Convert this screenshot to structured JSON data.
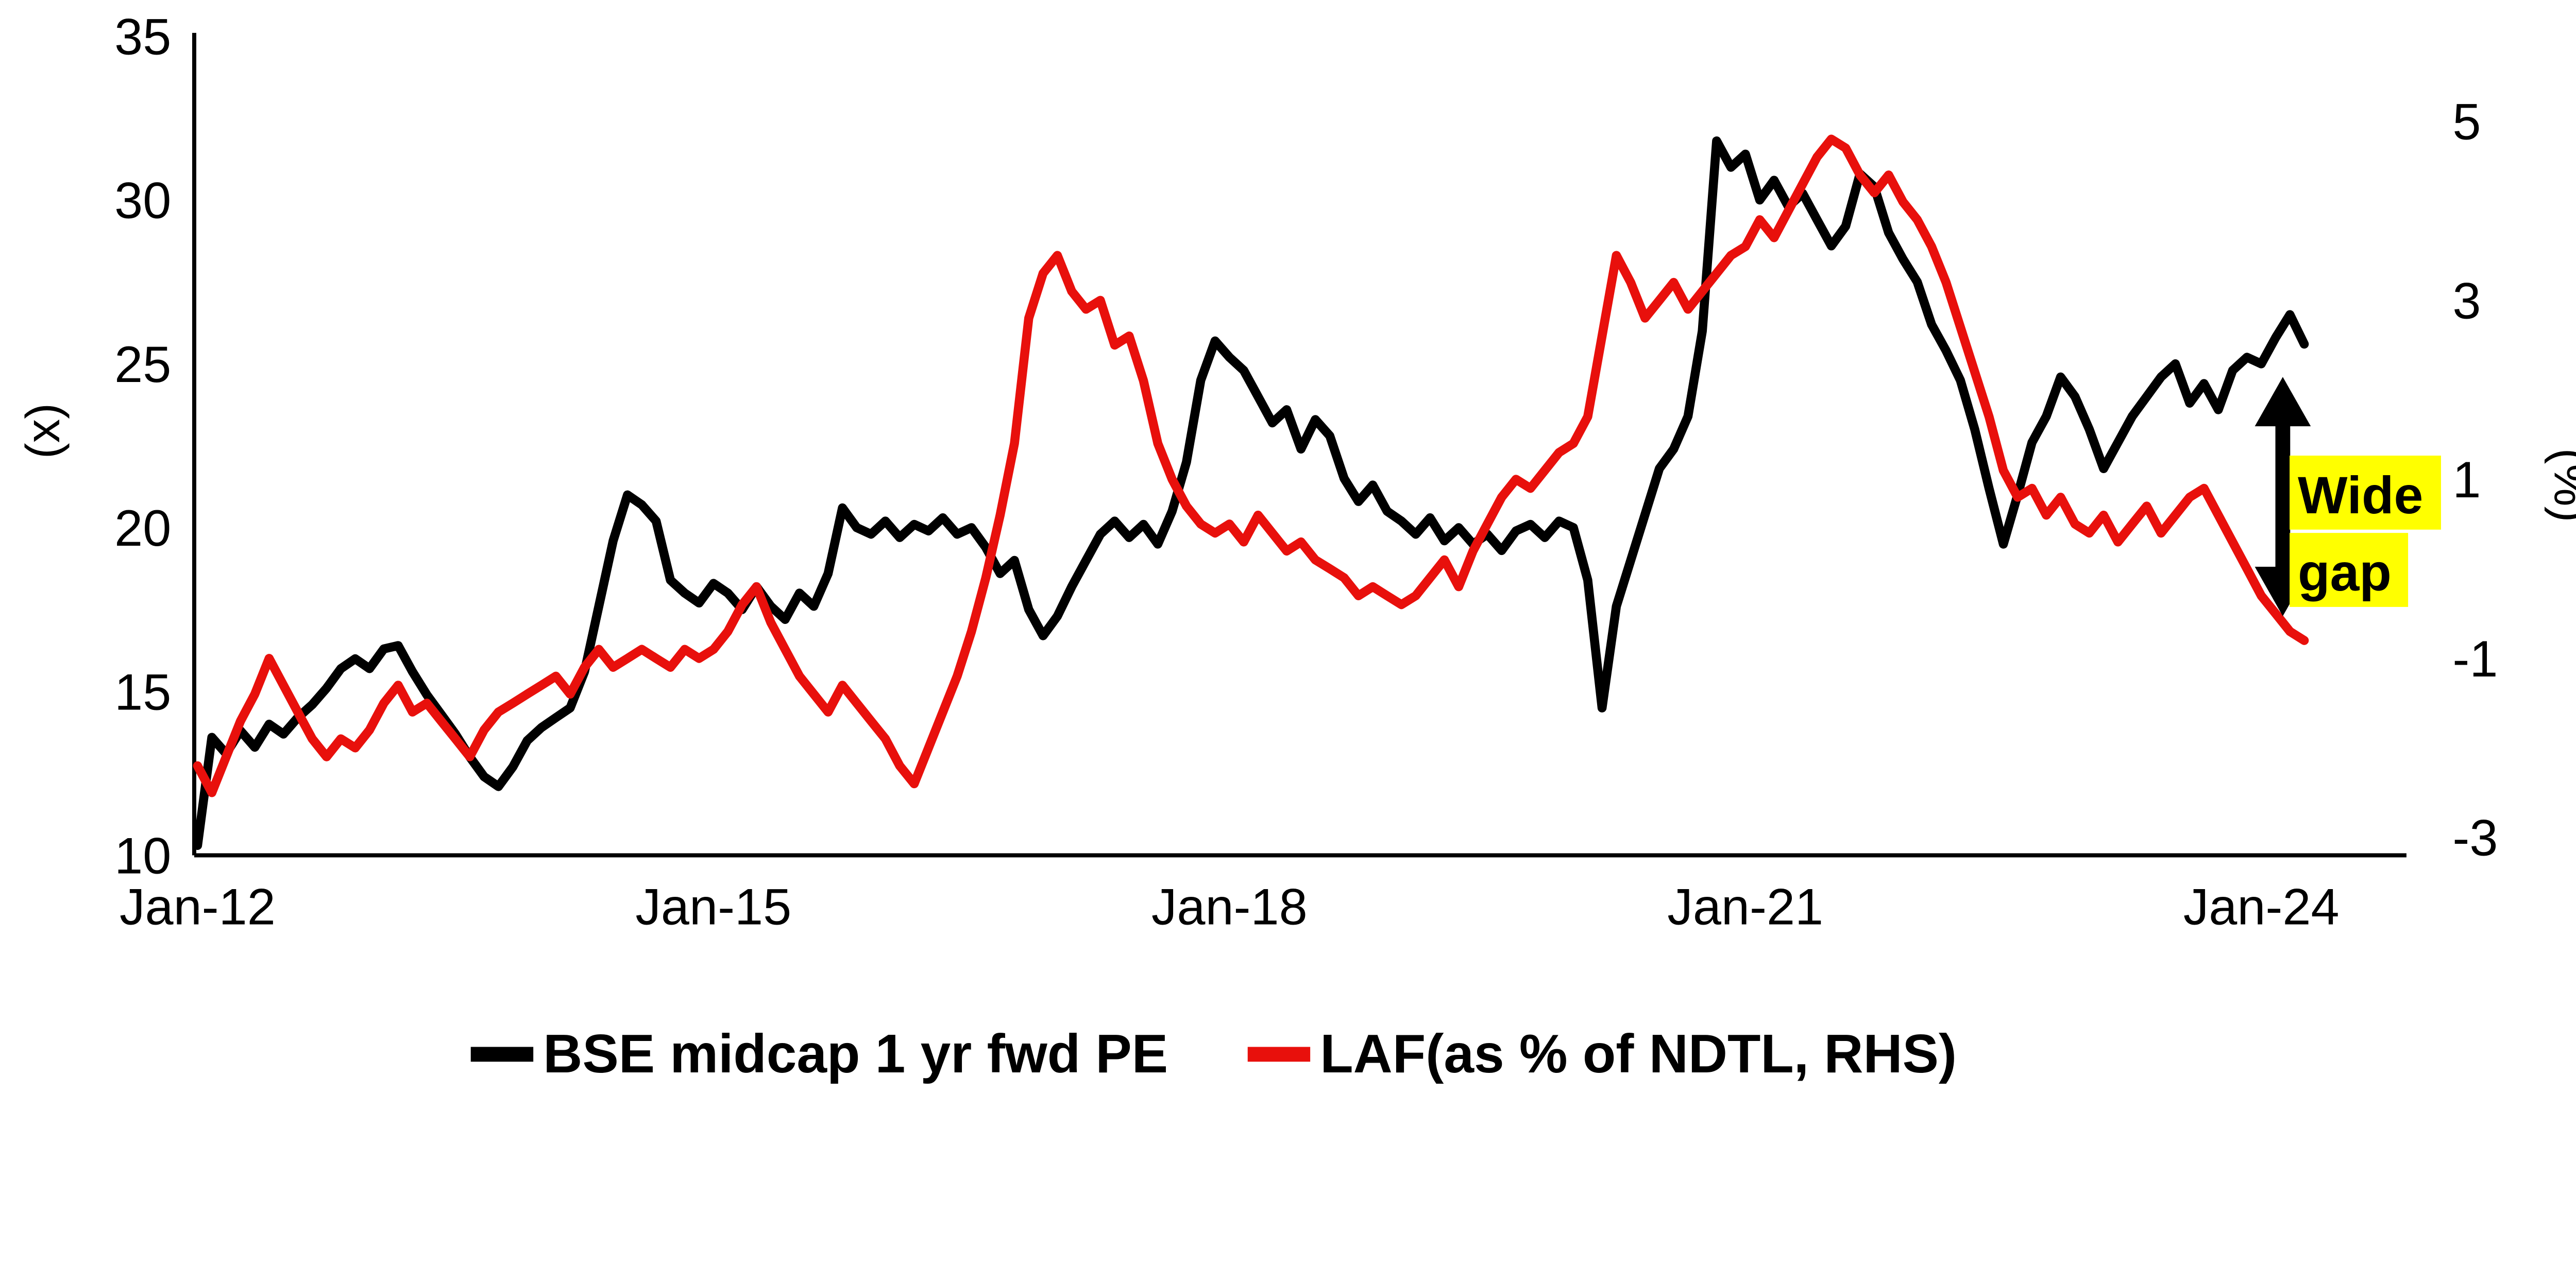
{
  "chart_data": {
    "type": "line",
    "title": "",
    "x_frequency": "monthly",
    "x_start": "Jan-2012",
    "x_end": "Apr-2024",
    "x_ticks": [
      {
        "label": "Jan-12",
        "month": 0
      },
      {
        "label": "Jan-15",
        "month": 36
      },
      {
        "label": "Jan-18",
        "month": 72
      },
      {
        "label": "Jan-21",
        "month": 108
      },
      {
        "label": "Jan-24",
        "month": 144
      }
    ],
    "left_axis": {
      "label": "(x)",
      "ticks": [
        10,
        15,
        20,
        25,
        30,
        35
      ],
      "min": 10,
      "max": 35
    },
    "right_axis": {
      "label": "(%)",
      "ticks": [
        -3,
        -1,
        1,
        3,
        5
      ],
      "min": -3,
      "max": 5
    },
    "grid": "off",
    "legend_position": "bottom-center",
    "series": [
      {
        "name": "BSE midcap 1 yr fwd PE",
        "slug": "bse-midcap-pe",
        "axis": "left",
        "color": "#000000",
        "values": [
          10.3,
          13.6,
          13.1,
          13.8,
          13.3,
          14.0,
          13.7,
          14.2,
          14.6,
          15.1,
          15.7,
          16.0,
          15.7,
          16.3,
          16.4,
          15.6,
          14.9,
          14.3,
          13.7,
          13.0,
          12.4,
          12.1,
          12.7,
          13.5,
          13.9,
          14.2,
          14.5,
          15.6,
          17.6,
          19.6,
          21.0,
          20.7,
          20.2,
          18.4,
          18.0,
          17.7,
          18.3,
          18.0,
          17.5,
          18.2,
          17.6,
          17.2,
          18.0,
          17.6,
          18.6,
          20.6,
          20.0,
          19.8,
          20.2,
          19.7,
          20.1,
          19.9,
          20.3,
          19.8,
          20.0,
          19.4,
          18.6,
          19.0,
          17.5,
          16.7,
          17.3,
          18.2,
          19.0,
          19.8,
          20.2,
          19.7,
          20.1,
          19.5,
          20.5,
          22.0,
          24.5,
          25.7,
          25.2,
          24.8,
          24.0,
          23.2,
          23.6,
          22.4,
          23.3,
          22.8,
          21.5,
          20.8,
          21.3,
          20.5,
          20.2,
          19.8,
          20.3,
          19.6,
          20.0,
          19.5,
          19.8,
          19.3,
          19.9,
          20.1,
          19.7,
          20.2,
          20.0,
          18.4,
          14.5,
          17.6,
          19.0,
          20.4,
          21.8,
          22.4,
          23.4,
          26.0,
          31.8,
          31.0,
          31.4,
          30.0,
          30.6,
          29.8,
          30.2,
          29.4,
          28.6,
          29.2,
          30.8,
          30.4,
          29.0,
          28.2,
          27.5,
          26.2,
          25.4,
          24.5,
          23.0,
          21.2,
          19.5,
          21.0,
          22.6,
          23.4,
          24.6,
          24.0,
          23.0,
          21.8,
          22.6,
          23.4,
          24.0,
          24.6,
          25.0,
          23.8,
          24.4,
          23.6,
          24.8,
          25.2,
          25.0,
          25.8,
          26.5,
          25.6
        ]
      },
      {
        "name": "LAF(as % of NDTL, RHS)",
        "slug": "laf-pct-ndtl",
        "axis": "right",
        "color": "#e8100c",
        "values": [
          -2.2,
          -2.5,
          -2.1,
          -1.7,
          -1.4,
          -1.0,
          -1.3,
          -1.6,
          -1.9,
          -2.1,
          -1.9,
          -2.0,
          -1.8,
          -1.5,
          -1.3,
          -1.6,
          -1.5,
          -1.7,
          -1.9,
          -2.1,
          -1.8,
          -1.6,
          -1.5,
          -1.4,
          -1.3,
          -1.2,
          -1.4,
          -1.1,
          -0.9,
          -1.1,
          -1.0,
          -0.9,
          -1.0,
          -1.1,
          -0.9,
          -1.0,
          -0.9,
          -0.7,
          -0.4,
          -0.2,
          -0.6,
          -0.9,
          -1.2,
          -1.4,
          -1.6,
          -1.3,
          -1.5,
          -1.7,
          -1.9,
          -2.2,
          -2.4,
          -2.0,
          -1.6,
          -1.2,
          -0.7,
          -0.1,
          0.6,
          1.4,
          2.8,
          3.3,
          3.5,
          3.1,
          2.9,
          3.0,
          2.5,
          2.6,
          2.1,
          1.4,
          1.0,
          0.7,
          0.5,
          0.4,
          0.5,
          0.3,
          0.6,
          0.4,
          0.2,
          0.3,
          0.1,
          0.0,
          -0.1,
          -0.3,
          -0.2,
          -0.3,
          -0.4,
          -0.3,
          -0.1,
          0.1,
          -0.2,
          0.2,
          0.5,
          0.8,
          1.0,
          0.9,
          1.1,
          1.3,
          1.4,
          1.7,
          2.6,
          3.5,
          3.2,
          2.8,
          3.0,
          3.2,
          2.9,
          3.1,
          3.3,
          3.5,
          3.6,
          3.9,
          3.7,
          4.0,
          4.3,
          4.6,
          4.8,
          4.7,
          4.4,
          4.2,
          4.4,
          4.1,
          3.9,
          3.6,
          3.2,
          2.7,
          2.2,
          1.7,
          1.1,
          0.8,
          0.9,
          0.6,
          0.8,
          0.5,
          0.4,
          0.6,
          0.3,
          0.5,
          0.7,
          0.4,
          0.6,
          0.8,
          0.9,
          0.6,
          0.3,
          0.0,
          -0.3,
          -0.5,
          -0.7,
          -0.8
        ]
      }
    ],
    "annotation": {
      "lines": [
        "Wide",
        "gap"
      ],
      "text_color": "#ff0000",
      "highlight_color": "#ffff00",
      "arrow": {
        "month": 145.5,
        "top_value": 24.6,
        "bottom_value": 17.3,
        "axis": "left",
        "color": "#000000"
      }
    }
  }
}
